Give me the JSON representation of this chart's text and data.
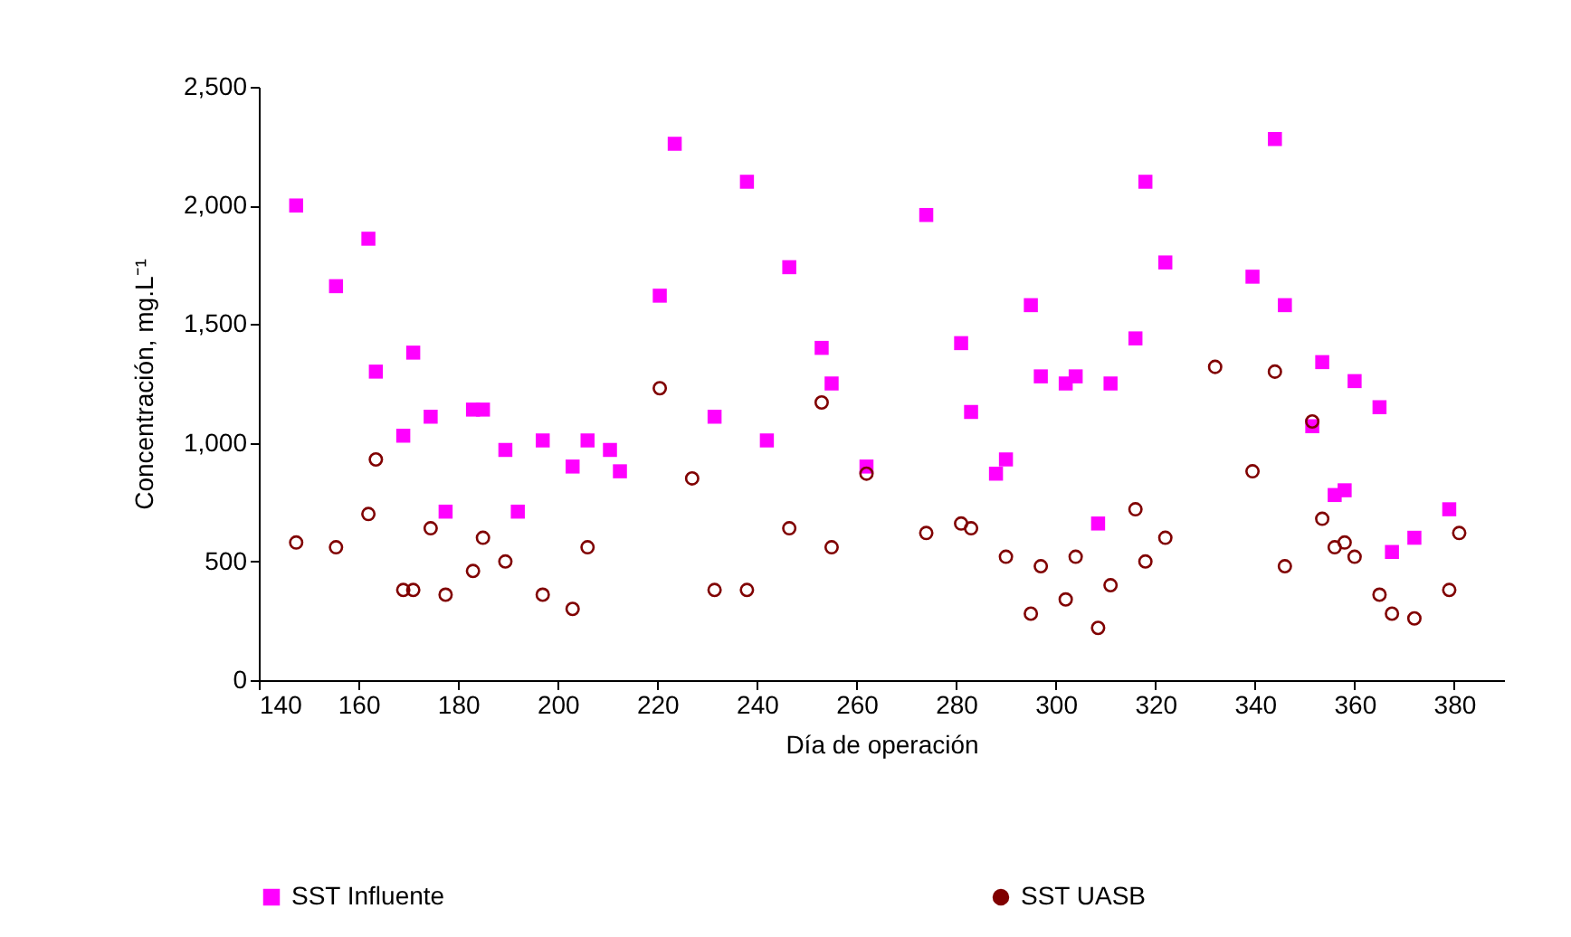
{
  "chart_data": {
    "type": "scatter",
    "xlabel": "Día de operación",
    "ylabel": "Concentración, mg.L⁻¹",
    "xlim": [
      140,
      390
    ],
    "xticks": [
      140,
      160,
      180,
      200,
      220,
      240,
      260,
      280,
      300,
      320,
      340,
      360,
      380
    ],
    "ylim": [
      0,
      2500
    ],
    "yticks": [
      0,
      {
        "value": 500,
        "label": "500"
      },
      {
        "value": 1000,
        "label": "1,000"
      },
      {
        "value": 1500,
        "label": "1,500"
      },
      {
        "value": 2000,
        "label": "2,000"
      },
      {
        "value": 2500,
        "label": "2,500"
      }
    ],
    "grid": false,
    "legend": "bottom",
    "series": [
      {
        "name": "SST Influente",
        "color": "#ff00ff",
        "marker": "square",
        "x": [
          147.5,
          155.5,
          162,
          163.5,
          169,
          171,
          174.5,
          177.5,
          183,
          185,
          189.5,
          192,
          197,
          203,
          206,
          210.5,
          212.5,
          220.5,
          223.5,
          231.5,
          238,
          242,
          246.5,
          253,
          255,
          262,
          274,
          281,
          283,
          288,
          290,
          295,
          297,
          302,
          304,
          308.5,
          311,
          316,
          318,
          322,
          339.5,
          344,
          346,
          351.5,
          353.5,
          356,
          358,
          360,
          365,
          367.5,
          372,
          379
        ],
        "values": [
          2000,
          1660,
          1860,
          1300,
          1030,
          1380,
          1110,
          710,
          1140,
          1140,
          970,
          710,
          1010,
          900,
          1010,
          970,
          880,
          1620,
          2260,
          1110,
          2100,
          1010,
          1740,
          1400,
          1250,
          900,
          1960,
          1420,
          1130,
          870,
          930,
          1580,
          1280,
          1250,
          1280,
          660,
          1250,
          1440,
          2100,
          1760,
          1700,
          2280,
          1580,
          1070,
          1340,
          780,
          800,
          1260,
          1150,
          540,
          600,
          720
        ]
      },
      {
        "name": "SST UASB",
        "color": "#800000",
        "marker": "circle",
        "x": [
          147.5,
          155.5,
          162,
          163.5,
          169,
          171,
          174.5,
          177.5,
          183,
          185,
          189.5,
          197,
          203,
          206,
          220.5,
          227,
          231.5,
          238,
          246.5,
          253,
          255,
          262,
          274,
          281,
          283,
          290,
          295,
          297,
          302,
          304,
          308.5,
          311,
          316,
          318,
          322,
          332,
          339.5,
          344,
          346,
          351.5,
          353.5,
          356,
          358,
          360,
          365,
          367.5,
          372,
          379,
          381
        ],
        "values": [
          580,
          560,
          700,
          930,
          380,
          380,
          640,
          360,
          460,
          600,
          500,
          360,
          300,
          560,
          1230,
          850,
          380,
          380,
          640,
          1170,
          560,
          870,
          620,
          660,
          640,
          520,
          280,
          480,
          340,
          520,
          220,
          400,
          720,
          500,
          600,
          1320,
          880,
          1300,
          480,
          1090,
          680,
          560,
          580,
          520,
          360,
          280,
          260,
          380,
          620
        ]
      }
    ]
  }
}
